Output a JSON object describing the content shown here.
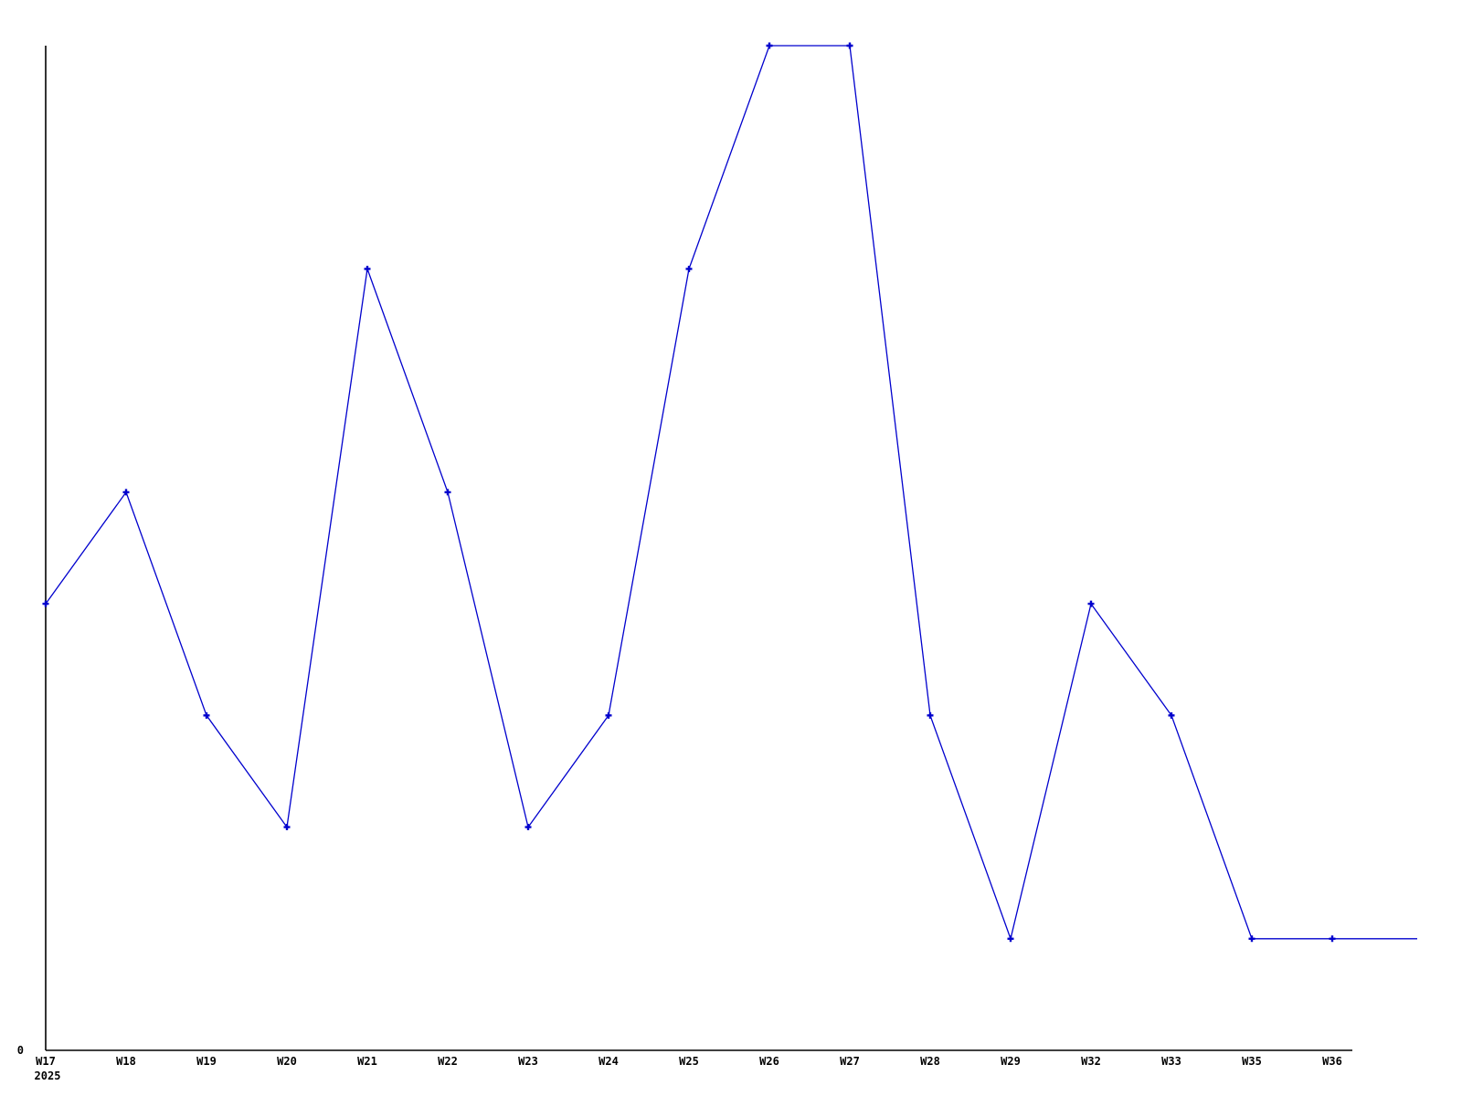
{
  "chart_data": {
    "type": "line",
    "title": "",
    "xlabel": "",
    "ylabel": "",
    "categories": [
      "W17",
      "W18",
      "W19",
      "W20",
      "W21",
      "W22",
      "W23",
      "W24",
      "W25",
      "W26",
      "W27",
      "W28",
      "W29",
      "W32",
      "W33",
      "W35",
      "W36"
    ],
    "values": [
      4,
      5,
      3,
      2,
      7,
      5,
      2,
      3,
      7,
      9,
      9,
      3,
      1,
      4,
      3,
      1,
      1
    ],
    "trailing_unlabeled_value": 1,
    "x_first_tick_year": "2025",
    "y_axis_labels": [
      "0"
    ],
    "ylim": [
      0,
      9
    ],
    "grid": false,
    "legend": false,
    "marker": "plus",
    "line_color": "#0000cd",
    "axis_color": "#000000",
    "background_color": "#ffffff"
  }
}
